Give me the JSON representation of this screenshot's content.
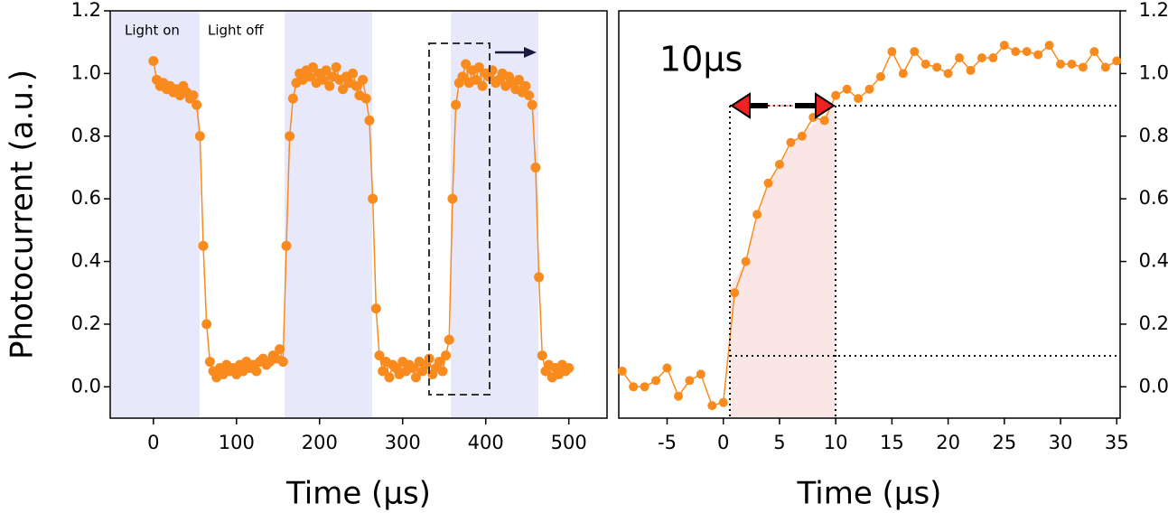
{
  "chart_data": [
    {
      "type": "scatter-line",
      "x_label": "Time  (µs)",
      "y_label": "Photocurrent (a.u.)",
      "color": "#f98a1e",
      "annotations": [
        "Light on",
        "Light off"
      ],
      "xlim": [
        -52,
        546
      ],
      "ylim": [
        -0.1,
        1.2
      ],
      "xticks": [
        0,
        100,
        200,
        300,
        400,
        500
      ],
      "yticks": [
        {
          "value": 0,
          "label": "0.0"
        },
        0.2,
        0.4,
        0.6,
        0.8,
        {
          "value": 1,
          "label": "1.0"
        },
        1.2
      ],
      "x": [
        0,
        4,
        8,
        12,
        16,
        20,
        24,
        28,
        32,
        36,
        40,
        44,
        48,
        52,
        56,
        60,
        64,
        68,
        72,
        76,
        80,
        84,
        88,
        92,
        96,
        100,
        104,
        108,
        112,
        116,
        120,
        124,
        128,
        132,
        136,
        140,
        144,
        148,
        152,
        156,
        160,
        164,
        168,
        172,
        176,
        180,
        184,
        188,
        192,
        196,
        200,
        204,
        208,
        212,
        216,
        220,
        224,
        228,
        232,
        236,
        240,
        244,
        248,
        252,
        256,
        260,
        264,
        268,
        272,
        276,
        280,
        284,
        288,
        292,
        296,
        300,
        304,
        308,
        312,
        316,
        320,
        324,
        328,
        332,
        336,
        340,
        344,
        348,
        352,
        356,
        360,
        364,
        368,
        372,
        376,
        380,
        384,
        388,
        392,
        396,
        400,
        404,
        408,
        412,
        416,
        420,
        424,
        428,
        432,
        436,
        440,
        444,
        448,
        452,
        456,
        460,
        464,
        468,
        472,
        476,
        480,
        484,
        488,
        492,
        496,
        500
      ],
      "values": [
        1.04,
        0.98,
        0.96,
        0.97,
        0.95,
        0.96,
        0.94,
        0.95,
        0.93,
        0.96,
        0.94,
        0.92,
        0.93,
        0.9,
        0.8,
        0.45,
        0.2,
        0.08,
        0.05,
        0.03,
        0.06,
        0.04,
        0.07,
        0.05,
        0.06,
        0.04,
        0.07,
        0.05,
        0.08,
        0.06,
        0.07,
        0.05,
        0.08,
        0.09,
        0.07,
        0.08,
        0.1,
        0.09,
        0.12,
        0.08,
        0.45,
        0.8,
        0.92,
        0.97,
        1.0,
        0.98,
        1.01,
        0.99,
        1.02,
        0.97,
        1.0,
        0.98,
        1.01,
        0.96,
        0.99,
        1.02,
        0.98,
        0.95,
        0.99,
        0.97,
        1.0,
        0.96,
        0.93,
        0.98,
        0.92,
        0.85,
        0.6,
        0.25,
        0.1,
        0.05,
        0.08,
        0.03,
        0.07,
        0.06,
        0.04,
        0.08,
        0.05,
        0.07,
        0.06,
        0.03,
        0.08,
        0.05,
        0.07,
        0.09,
        0.04,
        0.06,
        0.08,
        0.05,
        0.1,
        0.15,
        0.6,
        0.9,
        0.97,
        0.99,
        1.03,
        0.97,
        1.01,
        0.98,
        1.02,
        0.96,
        1.0,
        0.99,
        1.01,
        0.97,
        0.98,
        1.0,
        0.96,
        0.99,
        0.97,
        0.95,
        0.98,
        0.94,
        0.96,
        0.93,
        0.9,
        0.7,
        0.35,
        0.1,
        0.05,
        0.07,
        0.03,
        0.06,
        0.04,
        0.07,
        0.05,
        0.06
      ]
    },
    {
      "type": "scatter-line",
      "x_label": "Time  (µs)",
      "color": "#f98a1e",
      "y_axis_side": "right",
      "annotations": [
        "10µs"
      ],
      "xlim": [
        -9.3,
        35.3
      ],
      "ylim": [
        -0.1,
        1.2
      ],
      "xticks": [
        -5,
        0,
        5,
        10,
        15,
        20,
        25,
        30,
        35
      ],
      "yticks": [
        {
          "value": 0,
          "label": "0.0"
        },
        0.2,
        0.4,
        0.6,
        0.8,
        {
          "value": 1,
          "label": "1.0"
        },
        1.2
      ],
      "x": [
        -9,
        -8,
        -7,
        -6,
        -5,
        -4,
        -3,
        -2,
        -1,
        0,
        1,
        2,
        3,
        4,
        5,
        6,
        7,
        8,
        9,
        10,
        11,
        12,
        13,
        14,
        15,
        16,
        17,
        18,
        19,
        20,
        21,
        22,
        23,
        24,
        25,
        26,
        27,
        28,
        29,
        30,
        31,
        32,
        33,
        34,
        35
      ],
      "values": [
        0.05,
        0.0,
        0.0,
        0.02,
        0.06,
        -0.03,
        0.02,
        0.04,
        -0.06,
        -0.05,
        0.3,
        0.4,
        0.55,
        0.65,
        0.71,
        0.78,
        0.8,
        0.86,
        0.85,
        0.93,
        0.95,
        0.92,
        0.95,
        0.99,
        1.07,
        1.0,
        1.07,
        1.03,
        1.02,
        1.0,
        1.05,
        1.01,
        1.05,
        1.05,
        1.09,
        1.07,
        1.07,
        1.06,
        1.09,
        1.03,
        1.03,
        1.02,
        1.07,
        1.02,
        1.04
      ]
    }
  ]
}
